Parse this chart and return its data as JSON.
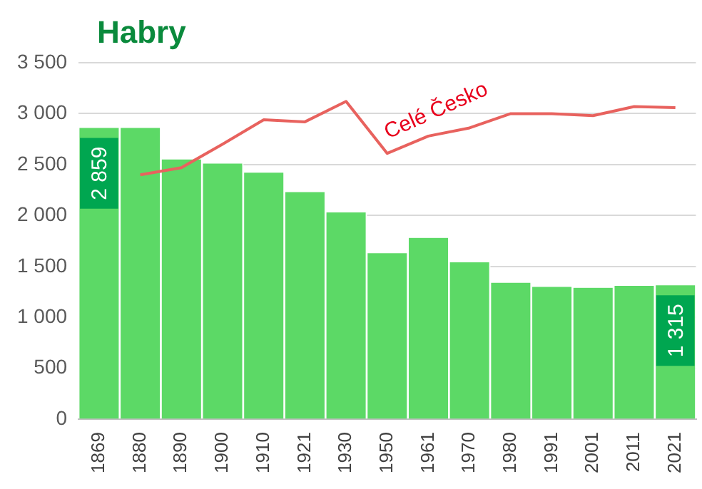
{
  "chart_data": {
    "type": "bar",
    "title": "Habry",
    "categories": [
      "1869",
      "1880",
      "1890",
      "1900",
      "1910",
      "1921",
      "1930",
      "1950",
      "1961",
      "1970",
      "1980",
      "1991",
      "2001",
      "2011",
      "2021"
    ],
    "series": [
      {
        "color": "#5cd966",
        "values": [
          2859,
          2860,
          2550,
          2510,
          2420,
          2230,
          2030,
          1630,
          1780,
          1540,
          1340,
          1300,
          1290,
          1310,
          1315
        ],
        "value_labels": [
          "2 859",
          null,
          null,
          null,
          null,
          null,
          null,
          null,
          null,
          null,
          null,
          null,
          null,
          null,
          "1 315"
        ]
      },
      {
        "type": "line",
        "name": "Celé Česko",
        "color": "#e8625e",
        "values": [
          null,
          2400,
          2470,
          2700,
          2940,
          2920,
          3120,
          2610,
          2780,
          2860,
          3000,
          3000,
          2980,
          3070,
          3060
        ]
      }
    ],
    "ylim": [
      0,
      3500
    ],
    "yticks": [
      0,
      500,
      {
        "value": 1000,
        "label": "1 000"
      },
      {
        "value": 1500,
        "label": "1 500"
      },
      {
        "value": 2000,
        "label": "2 000"
      },
      {
        "value": 2500,
        "label": "2 500"
      },
      {
        "value": 3000,
        "label": "3 000"
      },
      {
        "value": 3500,
        "label": "3 500"
      }
    ],
    "grid": "y",
    "legend": false,
    "marker": "none",
    "line_style": "solid"
  }
}
